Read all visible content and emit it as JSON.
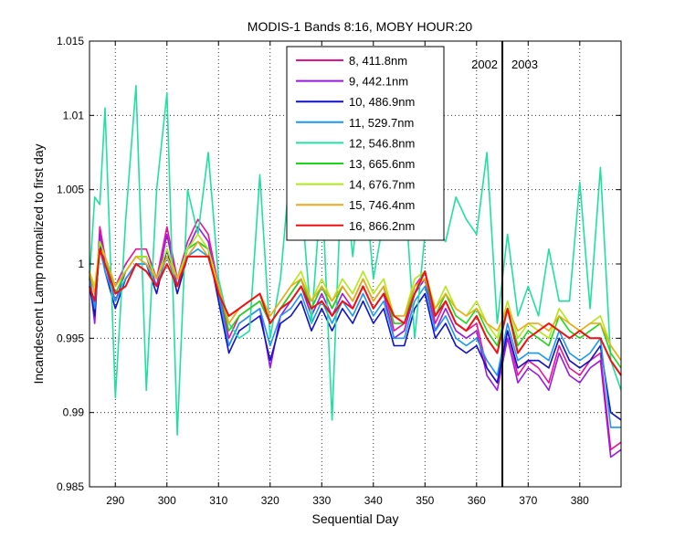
{
  "chart_data": {
    "type": "line",
    "title": "MODIS-1 Bands 8:16, MOBY HOUR:20",
    "xlabel": "Sequential Day",
    "ylabel": "Incandescent Lamp normalized to first day",
    "xlim": [
      285,
      388
    ],
    "ylim": [
      0.985,
      1.015
    ],
    "xticks": [
      290,
      300,
      310,
      320,
      330,
      340,
      350,
      360,
      370,
      380
    ],
    "yticks": [
      0.985,
      0.99,
      0.995,
      1,
      1.005,
      1.01,
      1.015
    ],
    "ytick_labels": [
      "0.985",
      "0.99",
      "0.995",
      "1",
      "1.005",
      "1.01",
      "1.015"
    ],
    "grid": true,
    "legend_position": "top-center",
    "annotations": {
      "divider_x": 365,
      "left_label": "2002",
      "right_label": "2003"
    },
    "x": [
      285,
      286,
      287,
      288,
      290,
      292,
      294,
      296,
      298,
      300,
      302,
      304,
      306,
      308,
      310,
      312,
      314,
      316,
      318,
      320,
      322,
      324,
      326,
      328,
      330,
      332,
      334,
      336,
      338,
      340,
      342,
      344,
      346,
      348,
      350,
      352,
      354,
      356,
      358,
      360,
      362,
      364,
      366,
      368,
      370,
      372,
      374,
      376,
      378,
      380,
      382,
      384,
      386,
      388
    ],
    "series": [
      {
        "name": "8, 411.8nm",
        "color": "#e8109a",
        "values": [
          0.9995,
          0.9965,
          1.0025,
          1.0005,
          0.9985,
          1.0,
          1.001,
          1.001,
          0.999,
          1.0025,
          0.999,
          1.0015,
          1.003,
          1.002,
          0.9985,
          0.995,
          0.9965,
          0.997,
          0.9975,
          0.996,
          0.997,
          0.998,
          0.999,
          0.997,
          0.9985,
          0.997,
          0.9985,
          0.9975,
          0.999,
          0.9975,
          0.9985,
          0.9955,
          0.996,
          0.9985,
          0.9995,
          0.996,
          0.9975,
          0.996,
          0.9955,
          0.996,
          0.993,
          0.992,
          0.9955,
          0.9925,
          0.9935,
          0.993,
          0.992,
          0.9945,
          0.993,
          0.9925,
          0.9935,
          0.994,
          0.9875,
          0.988
        ]
      },
      {
        "name": "9, 442.1nm",
        "color": "#9a18e0",
        "values": [
          0.999,
          0.996,
          1.002,
          1.0,
          0.9975,
          0.9995,
          1.0005,
          1.0005,
          0.9985,
          1.002,
          0.9985,
          1.001,
          1.0025,
          1.0015,
          0.998,
          0.9945,
          0.996,
          0.9965,
          0.997,
          0.993,
          0.9965,
          0.9975,
          0.9985,
          0.9965,
          0.998,
          0.9965,
          0.998,
          0.997,
          0.9985,
          0.997,
          0.998,
          0.995,
          0.9955,
          0.998,
          0.999,
          0.9955,
          0.997,
          0.9955,
          0.995,
          0.9955,
          0.9925,
          0.9915,
          0.995,
          0.992,
          0.993,
          0.9925,
          0.9915,
          0.994,
          0.9925,
          0.992,
          0.993,
          0.9935,
          0.987,
          0.9875
        ]
      },
      {
        "name": "10, 486.9nm",
        "color": "#1010c8",
        "values": [
          0.9985,
          0.9965,
          1.0015,
          0.9995,
          0.997,
          0.999,
          1.0,
          1.0,
          0.998,
          1.001,
          0.998,
          1.0005,
          1.0015,
          1.001,
          0.9975,
          0.994,
          0.9955,
          0.996,
          0.9965,
          0.9935,
          0.996,
          0.9965,
          0.9975,
          0.9955,
          0.997,
          0.9955,
          0.997,
          0.996,
          0.9975,
          0.996,
          0.997,
          0.9945,
          0.9945,
          0.997,
          0.998,
          0.995,
          0.996,
          0.9945,
          0.994,
          0.9945,
          0.993,
          0.992,
          0.9955,
          0.993,
          0.9935,
          0.9935,
          0.993,
          0.995,
          0.9935,
          0.993,
          0.9935,
          0.9945,
          0.99,
          0.9895
        ]
      },
      {
        "name": "11, 529.7nm",
        "color": "#1898f0",
        "values": [
          0.999,
          0.997,
          1.001,
          0.9995,
          0.9975,
          0.999,
          1.0,
          1.0,
          0.9985,
          1.0005,
          0.9985,
          1.0005,
          1.001,
          1.0005,
          0.998,
          0.9945,
          0.996,
          0.9965,
          0.997,
          0.9945,
          0.9965,
          0.997,
          0.998,
          0.996,
          0.9975,
          0.996,
          0.9975,
          0.9965,
          0.998,
          0.9965,
          0.9975,
          0.995,
          0.995,
          0.9975,
          0.9985,
          0.9955,
          0.9965,
          0.995,
          0.9945,
          0.995,
          0.9935,
          0.9925,
          0.996,
          0.9935,
          0.994,
          0.994,
          0.9935,
          0.9955,
          0.994,
          0.9935,
          0.994,
          0.995,
          0.989,
          0.989
        ]
      },
      {
        "name": "12, 546.8nm",
        "color": "#20e0a0",
        "values": [
          0.999,
          1.0045,
          1.004,
          1.0105,
          0.991,
          1.003,
          1.012,
          0.9915,
          1.005,
          1.0115,
          0.9885,
          1.005,
          1.002,
          1.0075,
          0.999,
          0.996,
          0.995,
          0.9955,
          1.006,
          0.995,
          0.999,
          1.007,
          1.0045,
          0.996,
          1.0055,
          0.9895,
          1.0075,
          1.0005,
          1.007,
          0.999,
          1.003,
          1.0045,
          1.0055,
          0.995,
          1.002,
          1.0025,
          1.0015,
          1.0045,
          1.003,
          1.002,
          1.0075,
          0.996,
          1.002,
          0.9965,
          0.9985,
          0.9965,
          1.001,
          0.9975,
          0.9975,
          1.0055,
          0.997,
          1.0065,
          0.9935,
          0.9915
        ]
      },
      {
        "name": "13, 665.6nm",
        "color": "#18d818",
        "values": [
          0.9995,
          0.998,
          1.0015,
          1.0005,
          0.998,
          0.9995,
          1.0005,
          1.0005,
          0.999,
          1.001,
          0.999,
          1.001,
          1.0015,
          1.001,
          0.9985,
          0.9955,
          0.9965,
          0.997,
          0.9975,
          0.996,
          0.997,
          0.998,
          0.999,
          0.997,
          0.9985,
          0.997,
          0.9985,
          0.9975,
          0.999,
          0.9975,
          0.9985,
          0.996,
          0.996,
          0.9985,
          0.999,
          0.9965,
          0.998,
          0.9965,
          0.996,
          0.997,
          0.9955,
          0.9945,
          0.997,
          0.9945,
          0.9955,
          0.995,
          0.9945,
          0.9965,
          0.9955,
          0.995,
          0.9955,
          0.996,
          0.994,
          0.993
        ]
      },
      {
        "name": "14, 676.7nm",
        "color": "#b0e818",
        "values": [
          0.9995,
          0.9985,
          1.0015,
          1.0005,
          0.9985,
          0.9995,
          1.0005,
          1.0005,
          0.999,
          1.001,
          0.999,
          1.001,
          1.002,
          1.001,
          0.9985,
          0.996,
          0.997,
          0.9975,
          0.998,
          0.9965,
          0.9975,
          0.9985,
          0.9995,
          0.9975,
          0.999,
          0.9975,
          0.999,
          0.998,
          0.9995,
          0.998,
          0.999,
          0.9965,
          0.9965,
          0.999,
          0.9995,
          0.997,
          0.9985,
          0.997,
          0.9965,
          0.9975,
          0.996,
          0.995,
          0.9975,
          0.995,
          0.996,
          0.9955,
          0.995,
          0.997,
          0.996,
          0.9955,
          0.996,
          0.9965,
          0.9945,
          0.9935
        ]
      },
      {
        "name": "15, 746.4nm",
        "color": "#f0a818",
        "values": [
          0.9995,
          0.998,
          1.001,
          1.0005,
          0.9985,
          0.9995,
          1.0005,
          1.0,
          0.999,
          1.0005,
          0.999,
          1.0005,
          1.0015,
          1.0005,
          0.9985,
          0.996,
          0.997,
          0.9975,
          0.998,
          0.9965,
          0.9975,
          0.9985,
          0.999,
          0.9975,
          0.9985,
          0.9975,
          0.9985,
          0.9975,
          0.999,
          0.9975,
          0.9985,
          0.9965,
          0.9965,
          0.9985,
          0.999,
          0.997,
          0.998,
          0.997,
          0.9965,
          0.997,
          0.996,
          0.9955,
          0.997,
          0.9955,
          0.996,
          0.996,
          0.9955,
          0.9965,
          0.996,
          0.9955,
          0.996,
          0.996,
          0.9945,
          0.9935
        ]
      },
      {
        "name": "16, 866.2nm",
        "color": "#f01010",
        "values": [
          0.9985,
          0.9975,
          1.001,
          1.0,
          0.998,
          0.9985,
          1.0,
          0.9995,
          0.9985,
          1.0,
          0.9985,
          1.0005,
          1.0005,
          1.0005,
          0.998,
          0.9965,
          0.997,
          0.9975,
          0.998,
          0.996,
          0.997,
          0.9975,
          0.9985,
          0.997,
          0.9975,
          0.9965,
          0.9975,
          0.997,
          0.9985,
          0.997,
          0.998,
          0.9965,
          0.996,
          0.998,
          0.9995,
          0.9965,
          0.9975,
          0.996,
          0.9955,
          0.9965,
          0.995,
          0.994,
          0.997,
          0.994,
          0.995,
          0.9955,
          0.996,
          0.9955,
          0.995,
          0.9955,
          0.995,
          0.995,
          0.9935,
          0.9925
        ]
      }
    ]
  }
}
